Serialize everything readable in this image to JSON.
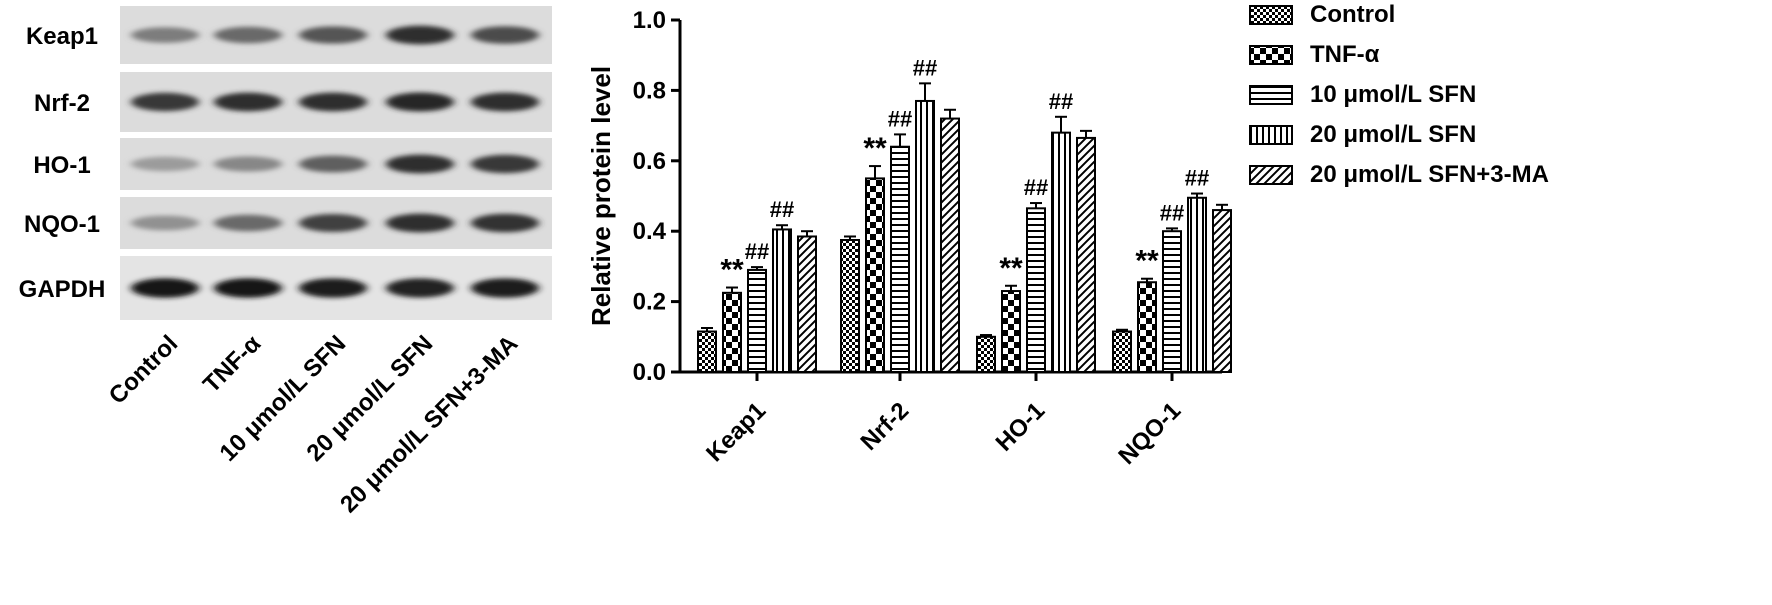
{
  "blot": {
    "rows": [
      {
        "label": "Keap1",
        "intensity": [
          0.45,
          0.55,
          0.65,
          0.85,
          0.7
        ]
      },
      {
        "label": "Nrf-2",
        "intensity": [
          0.8,
          0.85,
          0.85,
          0.88,
          0.85
        ]
      },
      {
        "label": "HO-1",
        "intensity": [
          0.3,
          0.4,
          0.6,
          0.85,
          0.8
        ]
      },
      {
        "label": "NQO-1",
        "intensity": [
          0.35,
          0.55,
          0.75,
          0.85,
          0.82
        ]
      },
      {
        "label": "GAPDH",
        "intensity": [
          0.95,
          0.95,
          0.92,
          0.9,
          0.92
        ]
      }
    ],
    "lanes": [
      "Control",
      "TNF-α",
      "10 μmol/L SFN",
      "20 μmol/L SFN",
      "20 μmol/L SFN+3-MA"
    ]
  },
  "chart_data": {
    "type": "bar",
    "ylabel": "Relative protein level",
    "ylim": [
      0,
      1.0
    ],
    "yticks": [
      "0.0",
      "0.2",
      "0.4",
      "0.6",
      "0.8",
      "1.0"
    ],
    "categories": [
      "Keap1",
      "Nrf-2",
      "HO-1",
      "NQO-1"
    ],
    "legend_position": "right",
    "series": [
      {
        "name": "Control",
        "pattern": "check",
        "values": [
          0.115,
          0.375,
          0.1,
          0.115
        ],
        "errors": [
          0.01,
          0.01,
          0.005,
          0.005
        ],
        "marks": [
          "",
          "",
          "",
          ""
        ]
      },
      {
        "name": "TNF-α",
        "pattern": "bigcheck",
        "values": [
          0.225,
          0.55,
          0.23,
          0.255
        ],
        "errors": [
          0.015,
          0.035,
          0.015,
          0.01
        ],
        "marks": [
          "**",
          "**",
          "**",
          "**"
        ]
      },
      {
        "name": "10 μmol/L SFN",
        "pattern": "hlines",
        "values": [
          0.29,
          0.64,
          0.465,
          0.4
        ],
        "errors": [
          0.008,
          0.035,
          0.015,
          0.008
        ],
        "marks": [
          "##",
          "##",
          "##",
          "##"
        ]
      },
      {
        "name": "20 μmol/L SFN",
        "pattern": "vlines",
        "values": [
          0.405,
          0.77,
          0.68,
          0.495
        ],
        "errors": [
          0.012,
          0.05,
          0.045,
          0.012
        ],
        "marks": [
          "##",
          "##",
          "##",
          "##"
        ]
      },
      {
        "name": "20 μmol/L SFN+3-MA",
        "pattern": "diag",
        "values": [
          0.385,
          0.72,
          0.665,
          0.46
        ],
        "errors": [
          0.015,
          0.025,
          0.02,
          0.015
        ],
        "marks": [
          "",
          "",
          "",
          ""
        ]
      }
    ]
  }
}
